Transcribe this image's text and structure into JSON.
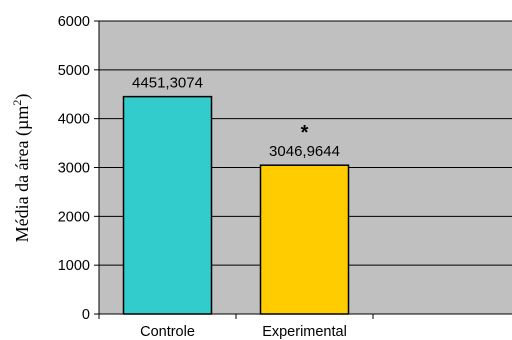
{
  "chart_data": {
    "type": "bar",
    "categories": [
      "Controle",
      "Experimental"
    ],
    "values": [
      4451.3074,
      3046.9644
    ],
    "data_labels": [
      "4451,3074",
      "3046,9644"
    ],
    "annotations": [
      {
        "category": "Experimental",
        "text": "*"
      }
    ],
    "title": "",
    "xlabel": "",
    "ylabel": {
      "text": "Média da área (µm",
      "superscript": "2",
      "suffix": ")"
    },
    "ylim": [
      0,
      6000
    ],
    "yticks": [
      0,
      1000,
      2000,
      3000,
      4000,
      5000,
      6000
    ],
    "grid": true,
    "legend": "none",
    "colors": {
      "plot_background": "#c0c0c0",
      "gridline": "#000000",
      "bars": [
        "#33cccc",
        "#ffcc00"
      ],
      "bar_edge": "#000000"
    }
  }
}
